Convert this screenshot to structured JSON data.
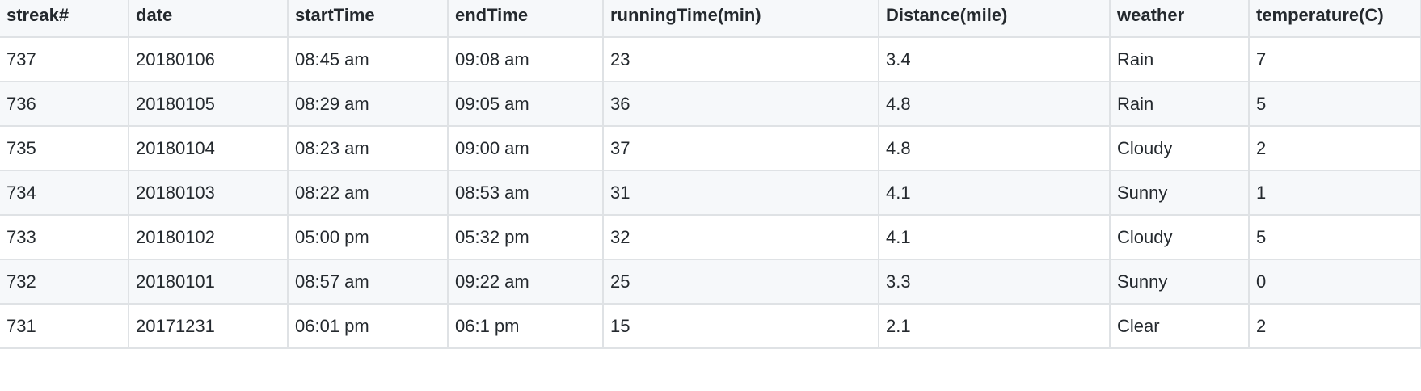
{
  "table": {
    "columns": [
      "streak#",
      "date",
      "startTime",
      "endTime",
      "runningTime(min)",
      "Distance(mile)",
      "weather",
      "temperature(C)"
    ],
    "rows": [
      [
        "737",
        "20180106",
        "08:45 am",
        "09:08 am",
        "23",
        "3.4",
        "Rain",
        "7"
      ],
      [
        "736",
        "20180105",
        "08:29 am",
        "09:05 am",
        "36",
        "4.8",
        "Rain",
        "5"
      ],
      [
        "735",
        "20180104",
        "08:23 am",
        "09:00 am",
        "37",
        "4.8",
        "Cloudy",
        "2"
      ],
      [
        "734",
        "20180103",
        "08:22 am",
        "08:53 am",
        "31",
        "4.1",
        "Sunny",
        "1"
      ],
      [
        "733",
        "20180102",
        "05:00 pm",
        "05:32 pm",
        "32",
        "4.1",
        "Cloudy",
        "5"
      ],
      [
        "732",
        "20180101",
        "08:57 am",
        "09:22 am",
        "25",
        "3.3",
        "Sunny",
        "0"
      ],
      [
        "731",
        "20171231",
        "06:01 pm",
        "06:1 pm",
        "15",
        "2.1",
        "Clear",
        "2"
      ]
    ]
  }
}
